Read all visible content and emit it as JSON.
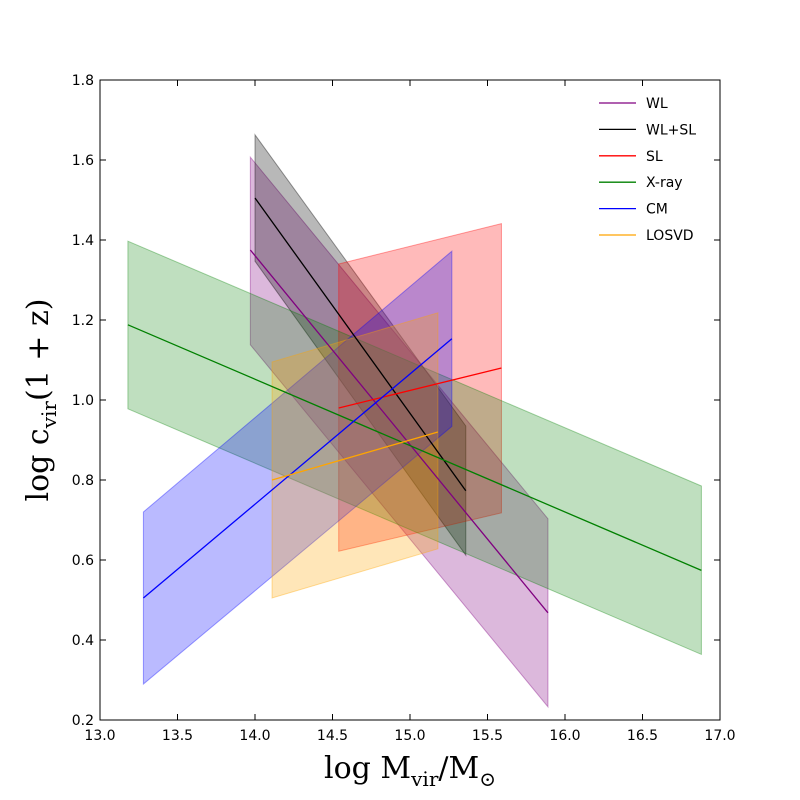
{
  "chart_data": {
    "type": "area",
    "xlabel": {
      "main": "log M",
      "sub1": "vir",
      "slash": "/M",
      "sub2": "⊙"
    },
    "ylabel": {
      "main": "log c",
      "sub": "vir",
      "tail": "(1 + z)"
    },
    "xlim": [
      13.0,
      17.0
    ],
    "ylim": [
      0.2,
      1.8
    ],
    "xticks": [
      "13.0",
      "13.5",
      "14.0",
      "14.5",
      "15.0",
      "15.5",
      "16.0",
      "16.5",
      "17.0"
    ],
    "yticks": [
      "0.2",
      "0.4",
      "0.6",
      "0.8",
      "1.0",
      "1.2",
      "1.4",
      "1.6",
      "1.8"
    ],
    "grid": false,
    "legend_position": "top-right",
    "series": [
      {
        "name": "WL",
        "color": "#800080",
        "alpha": 0.28,
        "x": [
          13.97,
          15.89
        ],
        "y": [
          1.375,
          0.468
        ],
        "upper": [
          1.607,
          0.703
        ],
        "lower": [
          1.138,
          0.233
        ]
      },
      {
        "name": "WL+SL",
        "color": "#000000",
        "alpha": 0.28,
        "x": [
          14.0,
          15.36
        ],
        "y": [
          1.505,
          0.773
        ],
        "upper": [
          1.663,
          0.935
        ],
        "lower": [
          1.347,
          0.612
        ]
      },
      {
        "name": "SL",
        "color": "#ff0000",
        "alpha": 0.27,
        "x": [
          14.54,
          15.59
        ],
        "y": [
          0.98,
          1.08
        ],
        "upper": [
          1.34,
          1.441
        ],
        "lower": [
          0.622,
          0.718
        ]
      },
      {
        "name": "X-ray",
        "color": "#008000",
        "alpha": 0.25,
        "x": [
          13.18,
          16.88
        ],
        "y": [
          1.188,
          0.574
        ],
        "upper": [
          1.397,
          0.785
        ],
        "lower": [
          0.978,
          0.364
        ]
      },
      {
        "name": "CM",
        "color": "#0000ff",
        "alpha": 0.27,
        "x": [
          13.28,
          15.27
        ],
        "y": [
          0.505,
          1.153
        ],
        "upper": [
          0.72,
          1.372
        ],
        "lower": [
          0.29,
          0.934
        ]
      },
      {
        "name": "LOSVD",
        "color": "#ffa500",
        "alpha": 0.28,
        "x": [
          14.11,
          15.18
        ],
        "y": [
          0.8,
          0.92
        ],
        "upper": [
          1.095,
          1.218
        ],
        "lower": [
          0.505,
          0.628
        ]
      }
    ]
  }
}
